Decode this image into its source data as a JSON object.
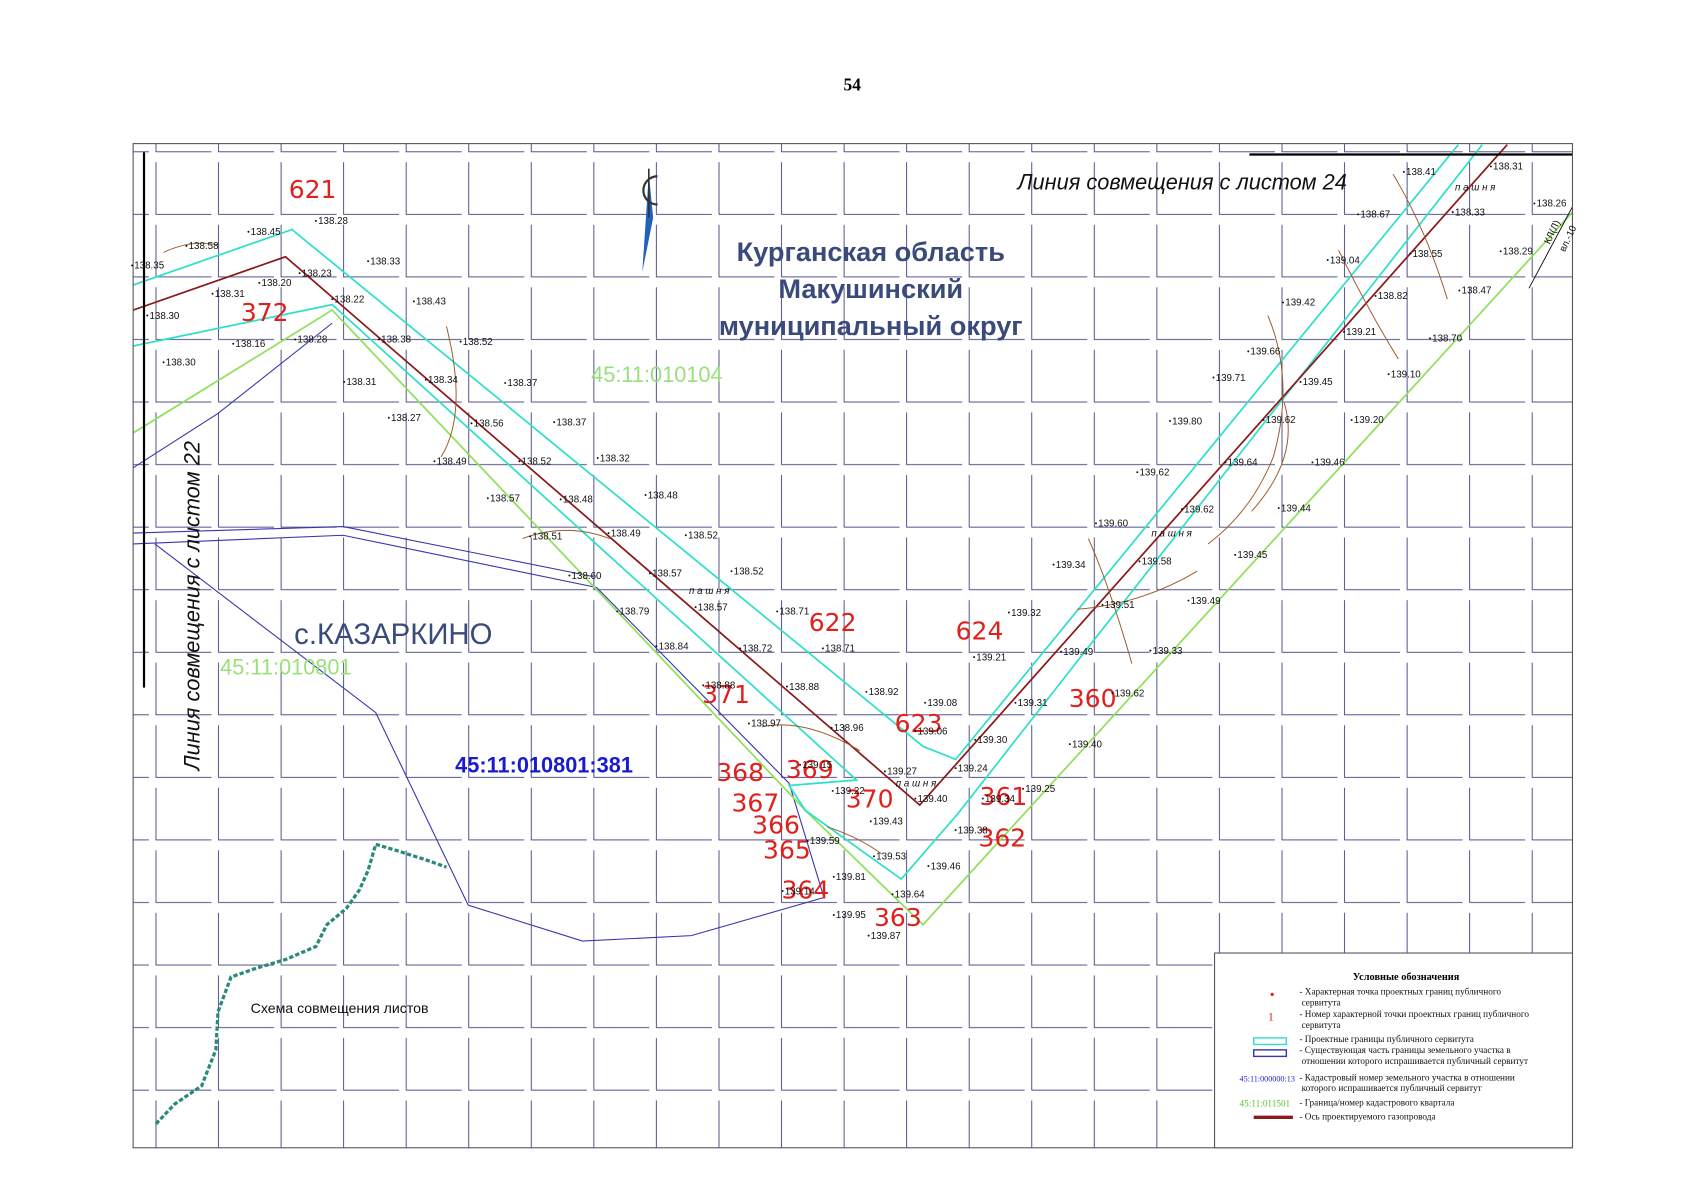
{
  "page_number": "54",
  "region_label": [
    "Курганская область",
    "Макушинский",
    "муниципальный округ"
  ],
  "sheet_links": [
    "Линия совмещения с листом 24",
    "Линия совмещения с листом 22"
  ],
  "settlement": "с.КАЗАРКИНО",
  "quarters": [
    "45:11:010104",
    "45:11:010801"
  ],
  "parcel": "45:11:010801:381",
  "scheme_label": "Схема совмещения листов",
  "line_marks": [
    "КЛ(Л)",
    "вл.-10"
  ],
  "points": [
    "621",
    "372",
    "622",
    "624",
    "371",
    "623",
    "360",
    "368",
    "369",
    "370",
    "367",
    "361",
    "366",
    "362",
    "365",
    "364",
    "363"
  ],
  "elevations": [
    "138.28",
    "138.45",
    "138.58",
    "138.35",
    "138.33",
    "138.23",
    "138.20",
    "138.31",
    "138.22",
    "138.43",
    "138.30",
    "138.16",
    "138.28",
    "138.38",
    "138.52",
    "138.30",
    "138.31",
    "138.34",
    "138.37",
    "138.27",
    "138.56",
    "138.37",
    "138.49",
    "138.52",
    "138.32",
    "138.57",
    "138.48",
    "138.48",
    "138.51",
    "138.49",
    "138.52",
    "138.60",
    "138.57",
    "138.52",
    "138.79",
    "138.57",
    "138.71",
    "138.71",
    "138.84",
    "138.72",
    "138.88",
    "138.88",
    "138.92",
    "139.08",
    "138.97",
    "138.96",
    "139.06",
    "139.15",
    "139.27",
    "139.24",
    "139.22",
    "139.40",
    "139.43",
    "139.59",
    "139.53",
    "139.38",
    "139.46",
    "139.81",
    "139.14",
    "139.64",
    "139.95",
    "139.87",
    "139.21",
    "139.32",
    "139.31",
    "139.30",
    "139.25",
    "139.34",
    "139.40",
    "139.49",
    "139.33",
    "139.62",
    "139.34",
    "139.60",
    "139.51",
    "139.49",
    "139.58",
    "139.45",
    "139.62",
    "139.44",
    "139.62",
    "139.64",
    "139.46",
    "139.80",
    "139.62",
    "139.20",
    "139.71",
    "139.45",
    "139.10",
    "139.66",
    "139.21",
    "138.70",
    "139.42",
    "138.82",
    "138.47",
    "139.04",
    "138.55",
    "138.29",
    "138.67",
    "138.33",
    "138.26",
    "138.41",
    "138.31"
  ],
  "field_labels": [
    "п а ш н я",
    "п а ш н я",
    "п а ш н я",
    "п а ш н я"
  ],
  "legend": {
    "title": "Условные обозначения",
    "sample_number": "1",
    "sample_cadastral": "45:11:000000:13",
    "sample_quarter": "45:11:011501",
    "items": [
      [
        "- Характерная точка проектных границ публичного",
        "сервитута"
      ],
      [
        "- Номер характерной точки проектных границ публичного",
        "сервитута"
      ],
      [
        "- Проектные границы публичного сервитута"
      ],
      [
        "- Существующая часть границы земельного участка в",
        "отношении которого испрашивается публичный сервитут"
      ],
      [
        "- Кадастровый номер земельного участка в отношении",
        "которого испрашивается публичный сервитут"
      ],
      [
        "- Граница/номер кадастрового квартала"
      ],
      [
        "- Ось проектируемого газопровода"
      ]
    ]
  }
}
